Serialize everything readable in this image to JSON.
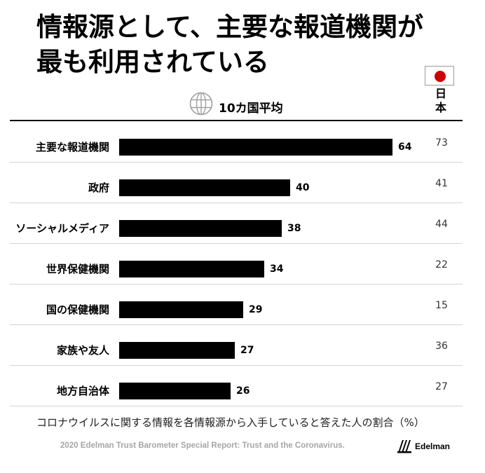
{
  "title_line1": "情報源として、主要な報道機関が",
  "title_line2": "最も利用されている",
  "legend": {
    "global_label": "10カ国平均",
    "japan_label": "日本"
  },
  "chart_data": {
    "type": "bar",
    "orientation": "horizontal",
    "categories": [
      "主要な報道機関",
      "政府",
      "ソーシャルメディア",
      "世界保健機関",
      "国の保健機関",
      "家族や友人",
      "地方自治体"
    ],
    "series": [
      {
        "name": "10カ国平均",
        "values": [
          64,
          40,
          38,
          34,
          29,
          27,
          26
        ]
      },
      {
        "name": "日本",
        "values": [
          73,
          41,
          44,
          22,
          15,
          36,
          27
        ]
      }
    ],
    "xlim": [
      0,
      100
    ],
    "grid": false,
    "colors": {
      "bar": "#000000",
      "flag_red": "#cc0000"
    }
  },
  "caption": "コロナウイルスに関する情報を各情報源から入手していると答えた人の割合（%）",
  "source": "2020 Edelman Trust Barometer Special Report: Trust and the Coronavirus.",
  "brand": "Edelman"
}
